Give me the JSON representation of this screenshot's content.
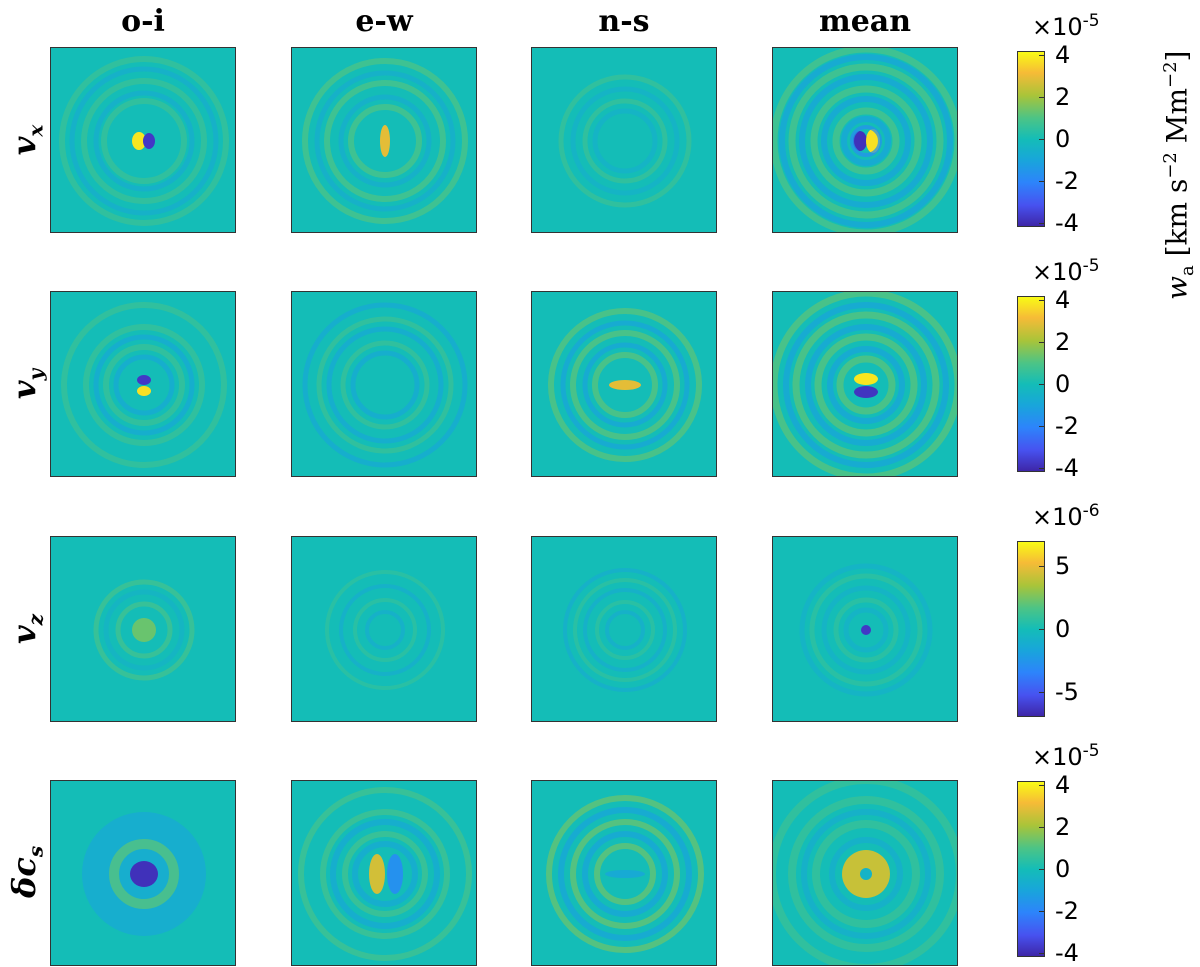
{
  "columns": [
    "o-i",
    "e-w",
    "n-s",
    "mean"
  ],
  "rows": [
    {
      "label": "v",
      "sub": "x",
      "scale": "×10",
      "exp": "-5",
      "ticks": [
        "4",
        "2",
        "0",
        "-2",
        "-4"
      ],
      "range": [
        -4.2,
        4.2
      ]
    },
    {
      "label": "v",
      "sub": "y",
      "scale": "×10",
      "exp": "-5",
      "ticks": [
        "4",
        "2",
        "0",
        "-2",
        "-4"
      ],
      "range": [
        -4.2,
        4.2
      ]
    },
    {
      "label": "v",
      "sub": "z",
      "scale": "×10",
      "exp": "-6",
      "ticks": [
        "5",
        "0",
        "-5"
      ],
      "range": [
        -7,
        7
      ]
    },
    {
      "label": "δc",
      "sub": "s",
      "scale": "×10",
      "exp": "-5",
      "ticks": [
        "4",
        "2",
        "0",
        "-2",
        "-4"
      ],
      "range": [
        -4.2,
        4.2
      ]
    }
  ],
  "units_label": {
    "var": "w",
    "sub": "a",
    "text": "[km s",
    "exp1": "−2",
    "mid": " Mm",
    "exp2": "−2",
    "close": "]"
  },
  "chart_data": {
    "type": "heatmap",
    "title": "",
    "xlabel": "",
    "ylabel": "",
    "columns": [
      "o-i",
      "e-w",
      "n-s",
      "mean"
    ],
    "rows": [
      "v_x",
      "v_y",
      "v_z",
      "δc_s"
    ],
    "colormap": "parula",
    "colorbars": [
      {
        "row": "v_x",
        "scale": "×10^-5",
        "ticks": [
          4,
          2,
          0,
          -2,
          -4
        ],
        "range": [
          -4.2,
          4.2
        ]
      },
      {
        "row": "v_y",
        "scale": "×10^-5",
        "ticks": [
          4,
          2,
          0,
          -2,
          -4
        ],
        "range": [
          -4.2,
          4.2
        ]
      },
      {
        "row": "v_z",
        "scale": "×10^-6",
        "ticks": [
          5,
          0,
          -5
        ],
        "range": [
          -7,
          7
        ]
      },
      {
        "row": "δc_s",
        "scale": "×10^-5",
        "ticks": [
          4,
          2,
          0,
          -2,
          -4
        ],
        "range": [
          -4.2,
          4.2
        ]
      }
    ],
    "colorbar_label": "w_a [km s^-2 Mm^-2]",
    "background_value": 0
  }
}
